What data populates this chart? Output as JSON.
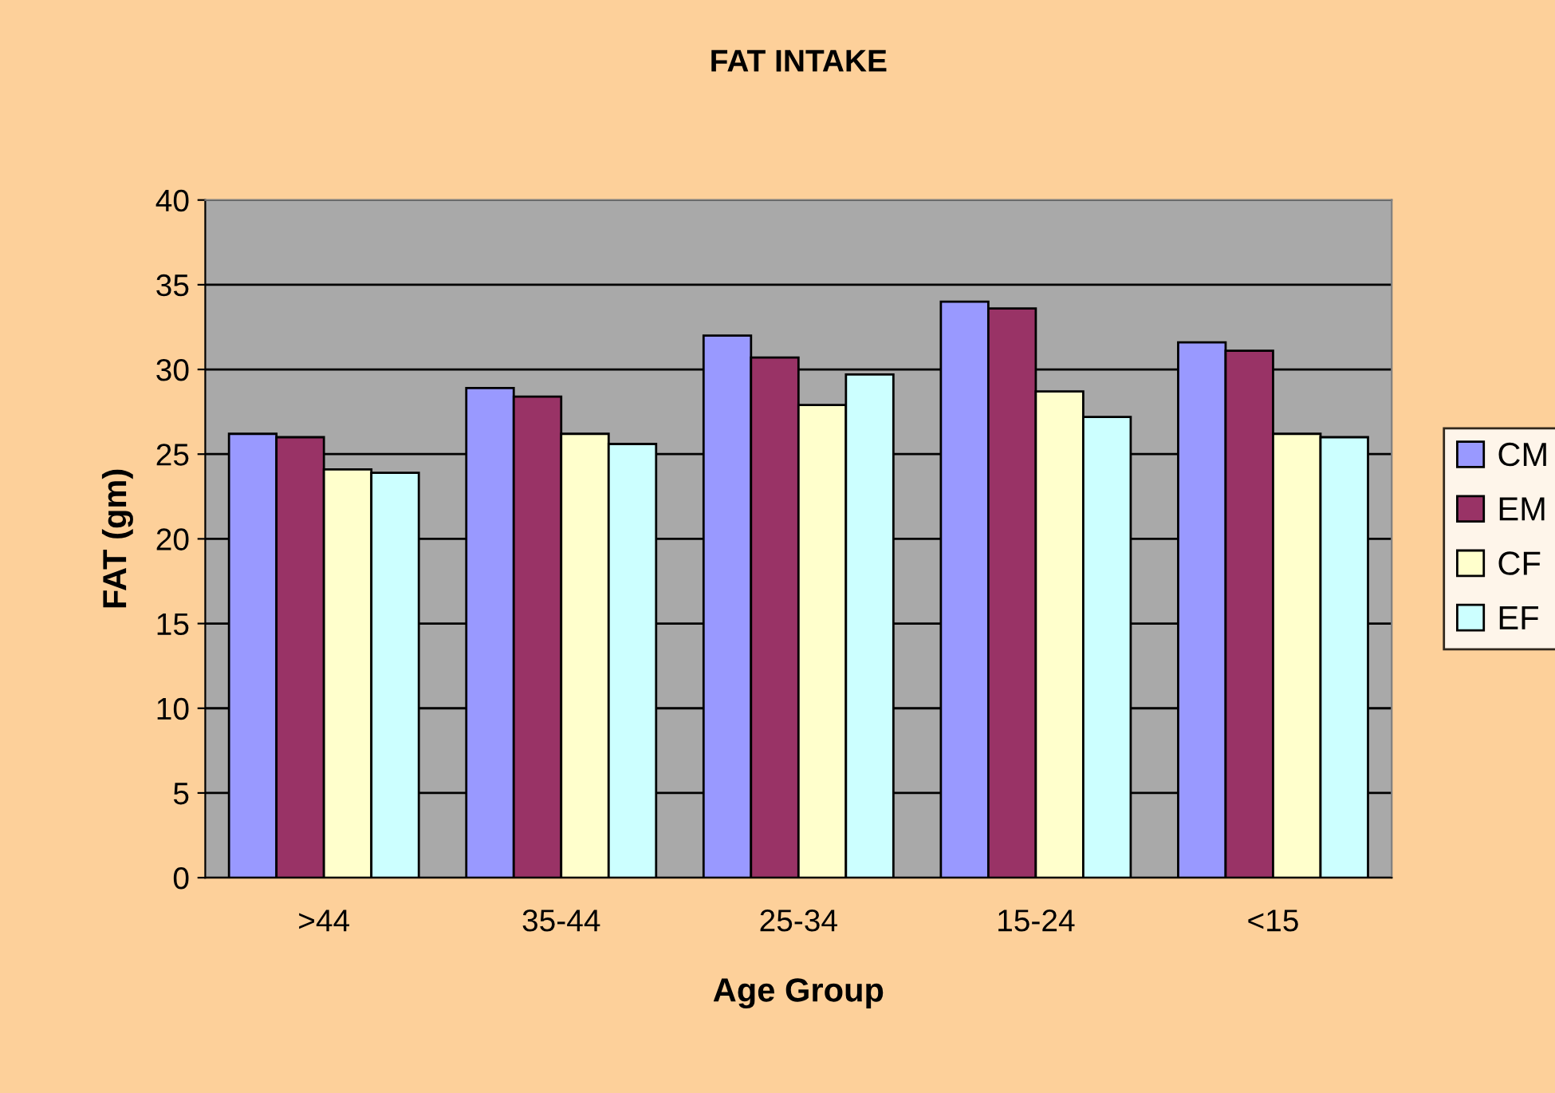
{
  "chart_data": {
    "type": "bar",
    "title": "FAT INTAKE",
    "xlabel": "Age Group",
    "ylabel": "FAT (gm)",
    "categories": [
      ">44",
      "35-44",
      "25-34",
      "15-24",
      "<15"
    ],
    "series": [
      {
        "name": "CM",
        "color": "#9999ff",
        "values": [
          26.2,
          28.9,
          32.0,
          34.0,
          31.6
        ]
      },
      {
        "name": "EM",
        "color": "#993366",
        "values": [
          26.0,
          28.4,
          30.7,
          33.6,
          31.1
        ]
      },
      {
        "name": "CF",
        "color": "#ffffcc",
        "values": [
          24.1,
          26.2,
          27.9,
          28.7,
          26.2
        ]
      },
      {
        "name": "EF",
        "color": "#ccffff",
        "values": [
          23.9,
          25.6,
          29.7,
          27.2,
          26.0
        ]
      }
    ],
    "ylim": [
      0,
      40
    ],
    "yticks": [
      0,
      5,
      10,
      15,
      20,
      25,
      30,
      35,
      40
    ],
    "grid": "y",
    "legend": "right"
  }
}
